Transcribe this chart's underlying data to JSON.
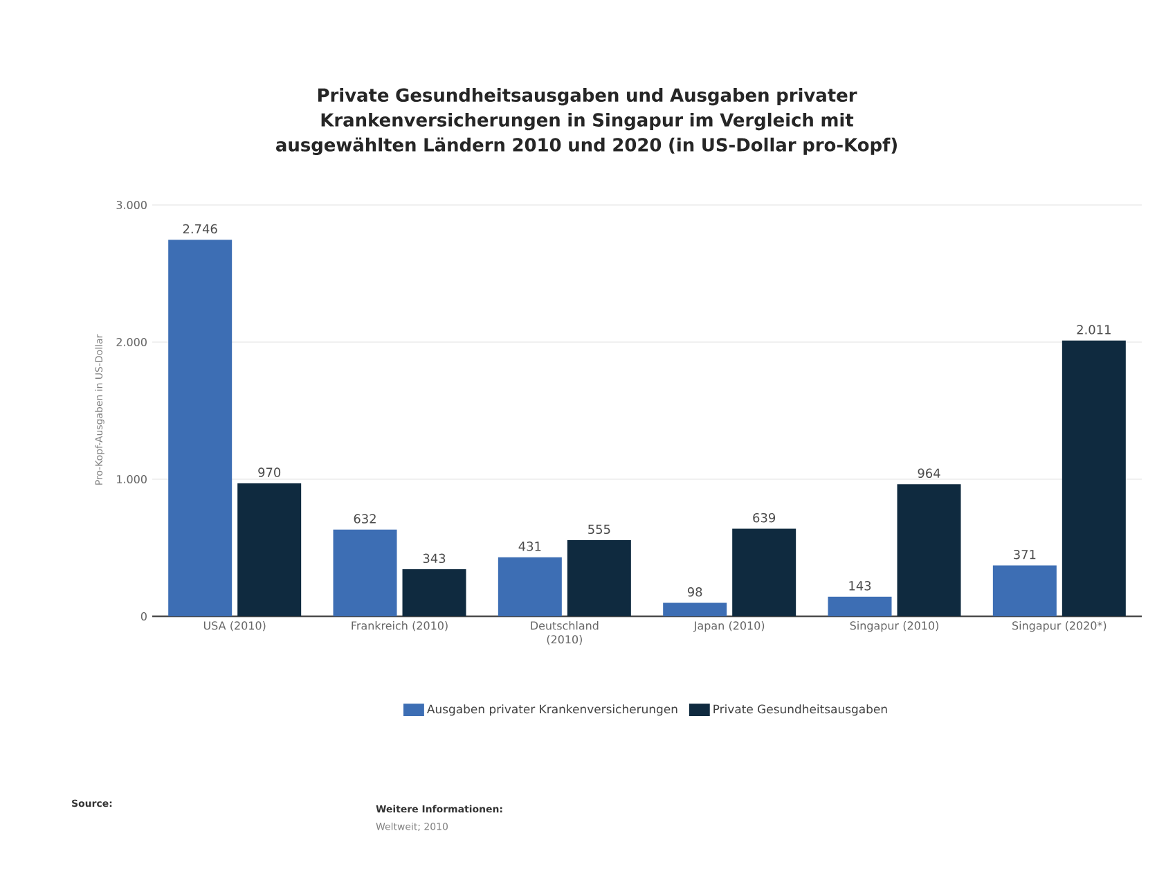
{
  "chart_data": {
    "type": "bar",
    "title": "Private Gesundheitsausgaben und Ausgaben privater Krankenversicherungen in Singapur im Vergleich mit ausgewählten Ländern 2010 und 2020 (in US-Dollar pro-Kopf)",
    "ylabel": "Pro-Kopf-Ausgaben in US-Dollar",
    "categories": [
      "USA (2010)",
      "Frankreich (2010)",
      "Deutschland (2010)",
      "Japan (2010)",
      "Singapur (2010)",
      "Singapur (2020*)"
    ],
    "series": [
      {
        "name": "Ausgaben privater Krankenversicherungen",
        "color": "#3d6eb4",
        "values": [
          2746,
          632,
          431,
          98,
          143,
          371
        ],
        "value_labels": [
          "2.746",
          "632",
          "431",
          "98",
          "143",
          "371"
        ]
      },
      {
        "name": "Private Gesundheitsausgaben",
        "color": "#0f2a3f",
        "values": [
          970,
          343,
          555,
          639,
          964,
          2011
        ],
        "value_labels": [
          "970",
          "343",
          "555",
          "639",
          "964",
          "2.011"
        ]
      }
    ],
    "ylim": [
      0,
      3000
    ],
    "yticks": [
      0,
      {
        "value": 1000,
        "label": "1.000"
      },
      {
        "value": 2000,
        "label": "2.000"
      },
      {
        "value": 3000,
        "label": "3.000"
      }
    ],
    "grid": "y",
    "legend": "bottom",
    "annotations": [
      "Source:",
      "Weitere Informationen:",
      "Weltweit; 2010"
    ]
  }
}
